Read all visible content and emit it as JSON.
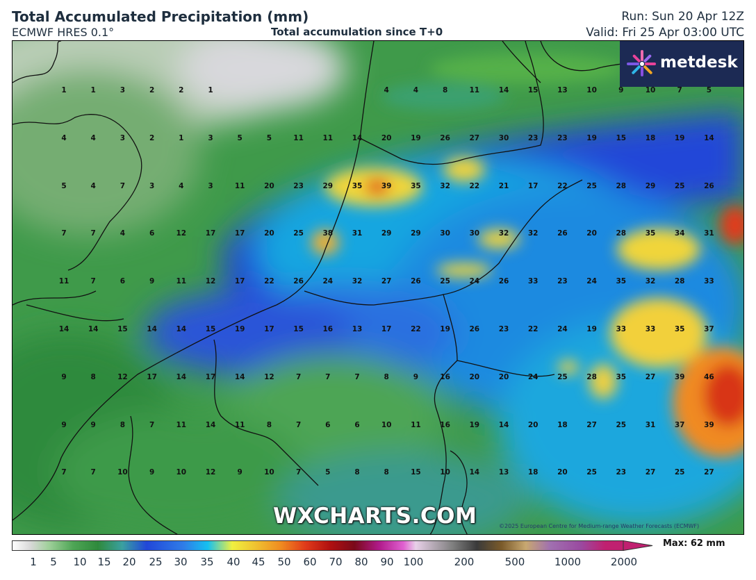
{
  "header": {
    "title": "Total Accumulated Precipitation (mm)",
    "model": "ECMWF HRES 0.1°",
    "accumulation": "Total accumulation since T+0",
    "run": "Run: Sun 20 Apr 12Z",
    "valid": "Valid: Fri 25 Apr 03:00 UTC"
  },
  "logo": {
    "text": "metdesk"
  },
  "watermark": "WXCHARTS.COM",
  "copyright": "©2025 European Centre for Medium-range Weather Forecasts (ECMWF)",
  "legend": {
    "ticks": [
      "1",
      "5",
      "10",
      "15",
      "20",
      "25",
      "30",
      "35",
      "40",
      "45",
      "50",
      "60",
      "70",
      "80",
      "90",
      "100",
      "200",
      "500",
      "1000",
      "2000"
    ],
    "max_label": "Max: 62 mm"
  },
  "grid_rows": [
    [
      "1",
      "1",
      "3",
      "2",
      "2",
      "1",
      "",
      "",
      "",
      "",
      "",
      "4",
      "4",
      "8",
      "11",
      "14",
      "15",
      "13",
      "10",
      "9",
      "10",
      "7",
      "5"
    ],
    [
      "4",
      "4",
      "3",
      "2",
      "1",
      "3",
      "5",
      "5",
      "11",
      "11",
      "14",
      "20",
      "19",
      "26",
      "27",
      "30",
      "23",
      "23",
      "19",
      "15",
      "18",
      "19",
      "14"
    ],
    [
      "5",
      "4",
      "7",
      "3",
      "4",
      "3",
      "11",
      "20",
      "23",
      "29",
      "35",
      "39",
      "35",
      "32",
      "22",
      "21",
      "17",
      "22",
      "25",
      "28",
      "29",
      "25",
      "26"
    ],
    [
      "7",
      "7",
      "4",
      "6",
      "12",
      "17",
      "17",
      "20",
      "25",
      "38",
      "31",
      "29",
      "29",
      "30",
      "30",
      "32",
      "32",
      "26",
      "20",
      "28",
      "35",
      "34",
      "31"
    ],
    [
      "11",
      "7",
      "6",
      "9",
      "11",
      "12",
      "17",
      "22",
      "26",
      "24",
      "32",
      "27",
      "26",
      "25",
      "24",
      "26",
      "33",
      "23",
      "24",
      "35",
      "32",
      "28",
      "33"
    ],
    [
      "14",
      "14",
      "15",
      "14",
      "14",
      "15",
      "19",
      "17",
      "15",
      "16",
      "13",
      "17",
      "22",
      "19",
      "26",
      "23",
      "22",
      "24",
      "19",
      "33",
      "33",
      "35",
      "37"
    ],
    [
      "9",
      "8",
      "12",
      "17",
      "14",
      "17",
      "14",
      "12",
      "7",
      "7",
      "7",
      "8",
      "9",
      "16",
      "20",
      "20",
      "24",
      "25",
      "28",
      "35",
      "27",
      "39",
      "46"
    ],
    [
      "9",
      "9",
      "8",
      "7",
      "11",
      "14",
      "11",
      "8",
      "7",
      "6",
      "6",
      "10",
      "11",
      "16",
      "19",
      "14",
      "20",
      "18",
      "27",
      "25",
      "31",
      "37",
      "39"
    ],
    [
      "7",
      "7",
      "10",
      "9",
      "10",
      "12",
      "9",
      "10",
      "7",
      "5",
      "8",
      "8",
      "15",
      "10",
      "14",
      "13",
      "18",
      "20",
      "25",
      "23",
      "27",
      "25",
      "27"
    ]
  ]
}
